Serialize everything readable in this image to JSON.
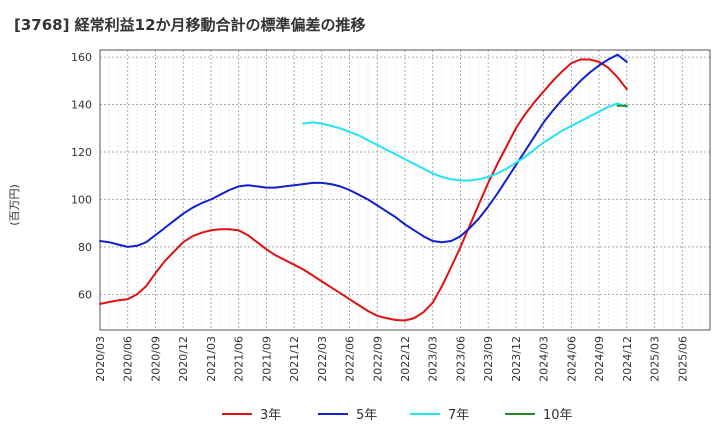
{
  "chart_data": {
    "type": "line",
    "title": "[3768]  経常利益12か月移動合計の標準偏差の推移",
    "ylabel": "(百万円)",
    "xlabel": "",
    "ylim": [
      45,
      163
    ],
    "yticks": [
      60,
      80,
      100,
      120,
      140,
      160
    ],
    "x_ticks": [
      "2020/03",
      "2020/06",
      "2020/09",
      "2020/12",
      "2021/03",
      "2021/06",
      "2021/09",
      "2021/12",
      "2022/03",
      "2022/06",
      "2022/09",
      "2022/12",
      "2023/03",
      "2023/06",
      "2023/09",
      "2023/12",
      "2024/03",
      "2024/06",
      "2024/09",
      "2024/12",
      "2025/03",
      "2025/06"
    ],
    "grid": true,
    "legend_position": "bottom",
    "series": [
      {
        "name": "3年",
        "color": "#dd1111",
        "points": [
          [
            "2020/03",
            56
          ],
          [
            "2020/04",
            56.8
          ],
          [
            "2020/05",
            57.5
          ],
          [
            "2020/06",
            58
          ],
          [
            "2020/07",
            60
          ],
          [
            "2020/08",
            63.5
          ],
          [
            "2020/09",
            69
          ],
          [
            "2020/10",
            74
          ],
          [
            "2020/11",
            78
          ],
          [
            "2020/12",
            82
          ],
          [
            "2021/01",
            84.5
          ],
          [
            "2021/02",
            86
          ],
          [
            "2021/03",
            87
          ],
          [
            "2021/04",
            87.5
          ],
          [
            "2021/05",
            87.5
          ],
          [
            "2021/06",
            87
          ],
          [
            "2021/07",
            85
          ],
          [
            "2021/08",
            82
          ],
          [
            "2021/09",
            79
          ],
          [
            "2021/10",
            76.5
          ],
          [
            "2021/11",
            74.5
          ],
          [
            "2021/12",
            72.5
          ],
          [
            "2022/01",
            70.5
          ],
          [
            "2022/02",
            68
          ],
          [
            "2022/03",
            65.5
          ],
          [
            "2022/04",
            63
          ],
          [
            "2022/05",
            60.5
          ],
          [
            "2022/06",
            58
          ],
          [
            "2022/07",
            55.5
          ],
          [
            "2022/08",
            53
          ],
          [
            "2022/09",
            51
          ],
          [
            "2022/10",
            50
          ],
          [
            "2022/11",
            49.2
          ],
          [
            "2022/12",
            49
          ],
          [
            "2023/01",
            50
          ],
          [
            "2023/02",
            52.5
          ],
          [
            "2023/03",
            56.5
          ],
          [
            "2023/04",
            63.5
          ],
          [
            "2023/05",
            71.5
          ],
          [
            "2023/06",
            80
          ],
          [
            "2023/07",
            89
          ],
          [
            "2023/08",
            98
          ],
          [
            "2023/09",
            107
          ],
          [
            "2023/10",
            115
          ],
          [
            "2023/11",
            122.5
          ],
          [
            "2023/12",
            130
          ],
          [
            "2024/01",
            136
          ],
          [
            "2024/02",
            141
          ],
          [
            "2024/03",
            145.5
          ],
          [
            "2024/04",
            150
          ],
          [
            "2024/05",
            154
          ],
          [
            "2024/06",
            157.5
          ],
          [
            "2024/07",
            159
          ],
          [
            "2024/08",
            159
          ],
          [
            "2024/09",
            158
          ],
          [
            "2024/10",
            155.5
          ],
          [
            "2024/11",
            151.5
          ],
          [
            "2024/12",
            146.5
          ]
        ]
      },
      {
        "name": "5年",
        "color": "#1122cc",
        "points": [
          [
            "2020/03",
            82.5
          ],
          [
            "2020/04",
            82
          ],
          [
            "2020/05",
            81
          ],
          [
            "2020/06",
            80
          ],
          [
            "2020/07",
            80.5
          ],
          [
            "2020/08",
            82
          ],
          [
            "2020/09",
            85
          ],
          [
            "2020/10",
            88
          ],
          [
            "2020/11",
            91
          ],
          [
            "2020/12",
            94
          ],
          [
            "2021/01",
            96.5
          ],
          [
            "2021/02",
            98.5
          ],
          [
            "2021/03",
            100
          ],
          [
            "2021/04",
            102
          ],
          [
            "2021/05",
            104
          ],
          [
            "2021/06",
            105.5
          ],
          [
            "2021/07",
            106
          ],
          [
            "2021/08",
            105.5
          ],
          [
            "2021/09",
            105
          ],
          [
            "2021/10",
            105
          ],
          [
            "2021/11",
            105.5
          ],
          [
            "2021/12",
            106
          ],
          [
            "2022/01",
            106.5
          ],
          [
            "2022/02",
            107
          ],
          [
            "2022/03",
            107
          ],
          [
            "2022/04",
            106.5
          ],
          [
            "2022/05",
            105.5
          ],
          [
            "2022/06",
            104
          ],
          [
            "2022/07",
            102
          ],
          [
            "2022/08",
            100
          ],
          [
            "2022/09",
            97.5
          ],
          [
            "2022/10",
            95
          ],
          [
            "2022/11",
            92.5
          ],
          [
            "2022/12",
            89.5
          ],
          [
            "2023/01",
            87
          ],
          [
            "2023/02",
            84.5
          ],
          [
            "2023/03",
            82.5
          ],
          [
            "2023/04",
            82
          ],
          [
            "2023/05",
            82.5
          ],
          [
            "2023/06",
            84.5
          ],
          [
            "2023/07",
            88
          ],
          [
            "2023/08",
            92
          ],
          [
            "2023/09",
            97
          ],
          [
            "2023/10",
            102.5
          ],
          [
            "2023/11",
            108.5
          ],
          [
            "2023/12",
            114.5
          ],
          [
            "2024/01",
            120.5
          ],
          [
            "2024/02",
            126.5
          ],
          [
            "2024/03",
            132.5
          ],
          [
            "2024/04",
            137.5
          ],
          [
            "2024/05",
            142
          ],
          [
            "2024/06",
            146
          ],
          [
            "2024/07",
            150
          ],
          [
            "2024/08",
            153.5
          ],
          [
            "2024/09",
            156.5
          ],
          [
            "2024/10",
            159
          ],
          [
            "2024/11",
            161
          ],
          [
            "2024/12",
            158
          ]
        ]
      },
      {
        "name": "7年",
        "color": "#22e5ee",
        "points": [
          [
            "2022/01",
            132
          ],
          [
            "2022/02",
            132.5
          ],
          [
            "2022/03",
            132
          ],
          [
            "2022/04",
            131
          ],
          [
            "2022/05",
            130
          ],
          [
            "2022/06",
            128.5
          ],
          [
            "2022/07",
            127
          ],
          [
            "2022/08",
            125
          ],
          [
            "2022/09",
            123
          ],
          [
            "2022/10",
            121
          ],
          [
            "2022/11",
            119
          ],
          [
            "2022/12",
            117
          ],
          [
            "2023/01",
            115
          ],
          [
            "2023/02",
            113
          ],
          [
            "2023/03",
            111
          ],
          [
            "2023/04",
            109.5
          ],
          [
            "2023/05",
            108.5
          ],
          [
            "2023/06",
            108
          ],
          [
            "2023/07",
            108
          ],
          [
            "2023/08",
            108.5
          ],
          [
            "2023/09",
            109.5
          ],
          [
            "2023/10",
            111
          ],
          [
            "2023/11",
            113
          ],
          [
            "2023/12",
            115.5
          ],
          [
            "2024/01",
            118
          ],
          [
            "2024/02",
            121
          ],
          [
            "2024/03",
            124
          ],
          [
            "2024/04",
            126.5
          ],
          [
            "2024/05",
            129
          ],
          [
            "2024/06",
            131
          ],
          [
            "2024/07",
            133
          ],
          [
            "2024/08",
            135
          ],
          [
            "2024/09",
            137
          ],
          [
            "2024/10",
            139
          ],
          [
            "2024/11",
            140.5
          ],
          [
            "2024/12",
            139
          ]
        ]
      },
      {
        "name": "10年",
        "color": "#228822",
        "points": [
          [
            "2024/11",
            139.5
          ],
          [
            "2024/12",
            139.5
          ]
        ]
      }
    ]
  }
}
